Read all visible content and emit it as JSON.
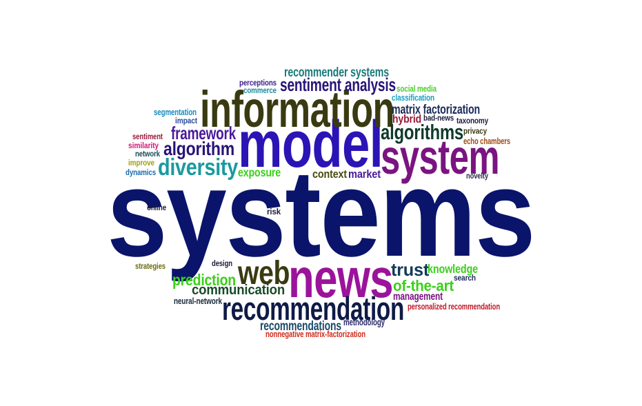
{
  "word_cloud": {
    "words": [
      {
        "text": "systems",
        "color": "#0a146b"
      },
      {
        "text": "model",
        "color": "#2b14b5"
      },
      {
        "text": "information",
        "color": "#3a3a12"
      },
      {
        "text": "news",
        "color": "#9b139b"
      },
      {
        "text": "system",
        "color": "#7a1480"
      },
      {
        "text": "recommendation",
        "color": "#0f1a46"
      },
      {
        "text": "web",
        "color": "#3a3a12"
      },
      {
        "text": "diversity",
        "color": "#1a9aa0"
      },
      {
        "text": "algorithms",
        "color": "#0f3a2a"
      },
      {
        "text": "algorithm",
        "color": "#281478"
      },
      {
        "text": "framework",
        "color": "#4a1a9a"
      },
      {
        "text": "sentiment analysis",
        "color": "#281478"
      },
      {
        "text": "trust",
        "color": "#123a5a"
      },
      {
        "text": "prediction",
        "color": "#3ad01a"
      },
      {
        "text": "communication",
        "color": "#1a4a2a"
      },
      {
        "text": "of-the-art",
        "color": "#3ad01a"
      },
      {
        "text": "recommender systems",
        "color": "#1a7a7a"
      },
      {
        "text": "recommendations",
        "color": "#1a4a6a"
      },
      {
        "text": "matrix factorization",
        "color": "#1a2a5a"
      },
      {
        "text": "exposure",
        "color": "#3ad01a"
      },
      {
        "text": "context",
        "color": "#4a4a12"
      },
      {
        "text": "market",
        "color": "#4a1a9a"
      },
      {
        "text": "knowledge",
        "color": "#3ad01a"
      },
      {
        "text": "management",
        "color": "#7a1480"
      },
      {
        "text": "hybrid",
        "color": "#9a1a3a"
      },
      {
        "text": "personalized recommendation",
        "color": "#c01a2a"
      },
      {
        "text": "nonnegative matrix-factorization",
        "color": "#d02a1a"
      },
      {
        "text": "methodology",
        "color": "#2a2a6a"
      },
      {
        "text": "neural-network",
        "color": "#1a2a3a"
      },
      {
        "text": "social media",
        "color": "#4ad02a"
      },
      {
        "text": "classification",
        "color": "#1aa0c0"
      },
      {
        "text": "bad-news",
        "color": "#1a1a3a"
      },
      {
        "text": "taxonomy",
        "color": "#1a1a3a"
      },
      {
        "text": "privacy",
        "color": "#3a3a12"
      },
      {
        "text": "echo chambers",
        "color": "#a04a12"
      },
      {
        "text": "novelty",
        "color": "#2a2a4a"
      },
      {
        "text": "search",
        "color": "#1a2a5a"
      },
      {
        "text": "perceptions",
        "color": "#3a1a8a"
      },
      {
        "text": "commerce",
        "color": "#1a8a9a"
      },
      {
        "text": "segmentation",
        "color": "#1a8ac0"
      },
      {
        "text": "impact",
        "color": "#2a4a9a"
      },
      {
        "text": "sentiment",
        "color": "#9a1a3a"
      },
      {
        "text": "similarity",
        "color": "#d01a7a"
      },
      {
        "text": "network",
        "color": "#1a4a5a"
      },
      {
        "text": "improve",
        "color": "#a0a012"
      },
      {
        "text": "dynamics",
        "color": "#1a6ab0"
      },
      {
        "text": "online",
        "color": "#1a1a3a"
      },
      {
        "text": "risk",
        "color": "#1a1a3a"
      },
      {
        "text": "strategies",
        "color": "#6a6a12"
      },
      {
        "text": "design",
        "color": "#1a1a3a"
      }
    ]
  }
}
